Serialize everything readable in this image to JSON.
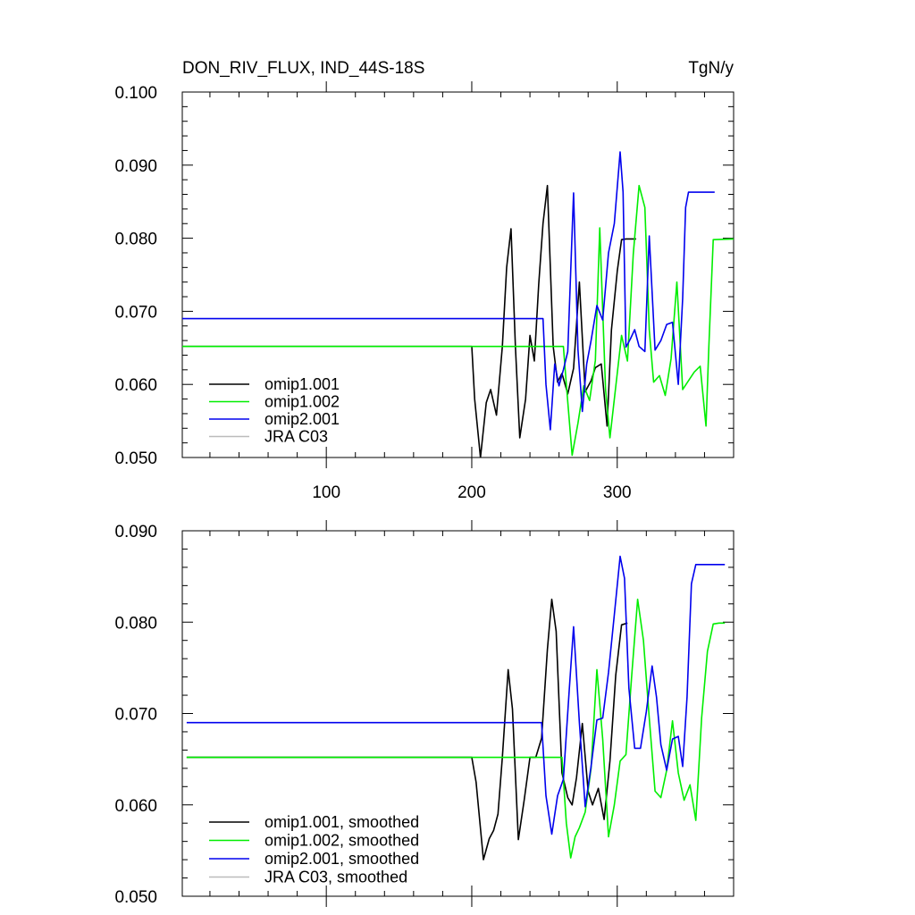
{
  "chart_data": [
    {
      "type": "line",
      "title": "DON_RIV_FLUX, IND_44S-18S",
      "units": "TgN/y",
      "xlim": [
        1,
        380
      ],
      "ylim": [
        0.05,
        0.1
      ],
      "xticks": [
        100,
        200,
        300
      ],
      "xtick_labels": [
        "100",
        "200",
        "300"
      ],
      "yticks": [
        0.05,
        0.06,
        0.07,
        0.08,
        0.09,
        0.1
      ],
      "ytick_labels": [
        "0.050",
        "0.060",
        "0.070",
        "0.080",
        "0.090",
        "0.100"
      ],
      "legend_position": "bottom-left",
      "series": [
        {
          "name": "omip1.001",
          "color": "#000000",
          "x": [
            1,
            200,
            202,
            206,
            210,
            213,
            217,
            221,
            224,
            227,
            230,
            233,
            237,
            240,
            243,
            246,
            249,
            252,
            256,
            259,
            262,
            266,
            270,
            274,
            278,
            282,
            285,
            289,
            293,
            296,
            300,
            303,
            306,
            313
          ],
          "y": [
            0.0652,
            0.0652,
            0.058,
            0.05,
            0.0575,
            0.0593,
            0.0558,
            0.0652,
            0.076,
            0.0813,
            0.0652,
            0.0527,
            0.058,
            0.0667,
            0.0632,
            0.0737,
            0.082,
            0.0872,
            0.0652,
            0.0603,
            0.0615,
            0.0587,
            0.0622,
            0.074,
            0.059,
            0.0605,
            0.0623,
            0.0628,
            0.0543,
            0.0675,
            0.0755,
            0.0798,
            0.0799,
            0.0799
          ]
        },
        {
          "name": "omip1.002",
          "color": "#00ee00",
          "x": [
            1,
            263,
            265,
            269,
            273,
            277,
            281,
            285,
            288,
            292,
            295,
            299,
            303,
            307,
            311,
            315,
            319,
            322,
            325,
            329,
            333,
            337,
            341,
            345,
            349,
            353,
            357,
            361,
            363,
            366,
            380
          ],
          "y": [
            0.0652,
            0.0652,
            0.06,
            0.0503,
            0.0547,
            0.0598,
            0.0578,
            0.0633,
            0.0814,
            0.0593,
            0.0527,
            0.0597,
            0.0667,
            0.0632,
            0.0778,
            0.0872,
            0.0842,
            0.0675,
            0.0603,
            0.0612,
            0.0585,
            0.0635,
            0.074,
            0.0593,
            0.0605,
            0.0617,
            0.0625,
            0.0543,
            0.0652,
            0.0798,
            0.0799
          ]
        },
        {
          "name": "omip2.001",
          "color": "#0000ee",
          "x": [
            1,
            249,
            251,
            254,
            257,
            260,
            263,
            266,
            270,
            273,
            276,
            279,
            282,
            286,
            290,
            294,
            298,
            302,
            304,
            306,
            309,
            312,
            315,
            319,
            322,
            326,
            330,
            334,
            338,
            342,
            345,
            347,
            349,
            352,
            356,
            361,
            367
          ],
          "y": [
            0.069,
            0.069,
            0.06,
            0.0538,
            0.0628,
            0.0598,
            0.062,
            0.0645,
            0.0862,
            0.0648,
            0.0563,
            0.0628,
            0.066,
            0.0708,
            0.0688,
            0.078,
            0.082,
            0.0918,
            0.0863,
            0.0651,
            0.0662,
            0.0675,
            0.0652,
            0.0645,
            0.0803,
            0.0647,
            0.066,
            0.0682,
            0.0685,
            0.06,
            0.0718,
            0.0842,
            0.0863,
            0.0863,
            0.0863,
            0.0863,
            0.0863
          ]
        },
        {
          "name": "JRA C03",
          "color": "#bbbbbb",
          "x": [],
          "y": []
        }
      ]
    },
    {
      "type": "line",
      "xlim": [
        1,
        380
      ],
      "ylim": [
        0.05,
        0.09
      ],
      "xticks": [
        100,
        200,
        300
      ],
      "yticks": [
        0.05,
        0.06,
        0.07,
        0.08,
        0.09
      ],
      "ytick_labels": [
        "0.050",
        "0.060",
        "0.070",
        "0.080",
        "0.090"
      ],
      "legend_position": "bottom-left",
      "series": [
        {
          "name": "omip1.001, smoothed",
          "color": "#000000",
          "x": [
            4,
            200,
            203,
            208,
            212,
            215,
            218,
            221,
            225,
            228,
            232,
            236,
            240,
            244,
            248,
            252,
            255,
            258,
            262,
            266,
            269,
            272,
            276,
            280,
            283,
            287,
            291,
            295,
            299,
            303,
            307
          ],
          "y": [
            0.0652,
            0.0652,
            0.0625,
            0.054,
            0.0563,
            0.0572,
            0.059,
            0.0652,
            0.0748,
            0.0705,
            0.0562,
            0.0605,
            0.0652,
            0.0652,
            0.0673,
            0.077,
            0.0825,
            0.079,
            0.0635,
            0.0608,
            0.06,
            0.063,
            0.0689,
            0.0615,
            0.06,
            0.0618,
            0.0584,
            0.0648,
            0.0742,
            0.0797,
            0.0799
          ]
        },
        {
          "name": "omip1.002, smoothed",
          "color": "#00ee00",
          "x": [
            4,
            262,
            265,
            268,
            271,
            274,
            278,
            282,
            286,
            290,
            294,
            298,
            302,
            306,
            310,
            314,
            318,
            322,
            326,
            330,
            334,
            338,
            342,
            346,
            350,
            354,
            358,
            362,
            366,
            370,
            374
          ],
          "y": [
            0.0652,
            0.0652,
            0.058,
            0.0542,
            0.0565,
            0.0575,
            0.0592,
            0.064,
            0.0748,
            0.0672,
            0.0565,
            0.06,
            0.0648,
            0.0655,
            0.0742,
            0.0825,
            0.078,
            0.0695,
            0.0615,
            0.0608,
            0.0638,
            0.0692,
            0.0635,
            0.0605,
            0.0622,
            0.0583,
            0.0695,
            0.0768,
            0.0798,
            0.0799,
            0.0799
          ]
        },
        {
          "name": "omip2.001, smoothed",
          "color": "#0000ee",
          "x": [
            4,
            248,
            251,
            255,
            259,
            263,
            267,
            270,
            274,
            278,
            282,
            286,
            290,
            294,
            298,
            302,
            305,
            308,
            312,
            316,
            320,
            324,
            327,
            330,
            334,
            338,
            342,
            345,
            348,
            351,
            354,
            357,
            360,
            364,
            368,
            374
          ],
          "y": [
            0.069,
            0.069,
            0.061,
            0.0568,
            0.061,
            0.0628,
            0.0725,
            0.0795,
            0.069,
            0.0598,
            0.0642,
            0.0693,
            0.0695,
            0.0745,
            0.0808,
            0.0872,
            0.0848,
            0.0728,
            0.0662,
            0.0662,
            0.0702,
            0.0752,
            0.0718,
            0.0666,
            0.0638,
            0.0672,
            0.0675,
            0.0642,
            0.0718,
            0.0842,
            0.0863,
            0.0863,
            0.0863,
            0.0863,
            0.0863,
            0.0863
          ]
        },
        {
          "name": "JRA C03, smoothed",
          "color": "#bbbbbb",
          "x": [],
          "y": []
        }
      ]
    }
  ]
}
